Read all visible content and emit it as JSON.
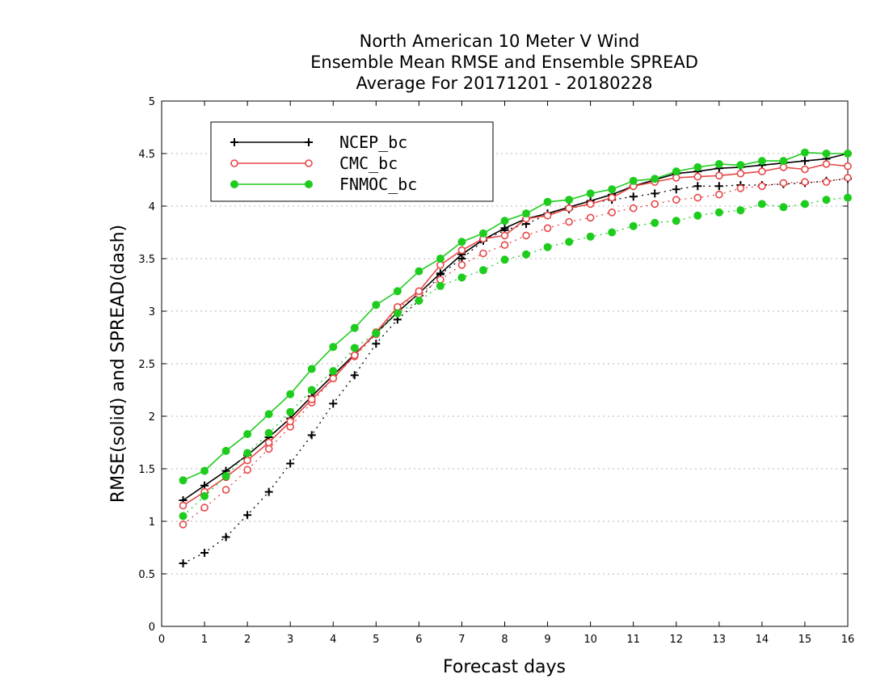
{
  "title_lines": [
    "North American 10 Meter V Wind",
    "Ensemble Mean RMSE and Ensemble SPREAD",
    "Average For 20171201 - 20180228"
  ],
  "chart_data": {
    "type": "line",
    "xlabel": "Forecast days",
    "ylabel": "RMSE(solid) and SPREAD(dash)",
    "xlim": [
      0,
      16
    ],
    "ylim": [
      0,
      5
    ],
    "x_ticks": [
      0,
      1,
      2,
      3,
      4,
      5,
      6,
      7,
      8,
      9,
      10,
      11,
      12,
      13,
      14,
      15,
      16
    ],
    "y_ticks": [
      0,
      0.5,
      1,
      1.5,
      2,
      2.5,
      3,
      3.5,
      4,
      4.5,
      5
    ],
    "y_tick_labels": [
      "0",
      "0.5",
      "1",
      "1.5",
      "2",
      "2.5",
      "3",
      "3.5",
      "4",
      "4.5",
      "5"
    ],
    "grid": "horizontal dotted",
    "legend_position": "top-left",
    "x": [
      0.5,
      1,
      1.5,
      2,
      2.5,
      3,
      3.5,
      4,
      4.5,
      5,
      5.5,
      6,
      6.5,
      7,
      7.5,
      8,
      8.5,
      9,
      9.5,
      10,
      10.5,
      11,
      11.5,
      12,
      12.5,
      13,
      13.5,
      14,
      14.5,
      15,
      15.5,
      16
    ],
    "series": [
      {
        "name": "NCEP_bc",
        "color": "#000000",
        "marker": "plus",
        "rmse": [
          1.2,
          1.34,
          1.48,
          1.63,
          1.8,
          1.98,
          2.19,
          2.39,
          2.59,
          2.79,
          2.99,
          3.17,
          3.36,
          3.54,
          3.68,
          3.79,
          3.88,
          3.93,
          3.99,
          4.05,
          4.11,
          4.19,
          4.25,
          4.31,
          4.33,
          4.36,
          4.37,
          4.39,
          4.41,
          4.43,
          4.45,
          4.5
        ],
        "spread": [
          0.6,
          0.7,
          0.85,
          1.06,
          1.28,
          1.55,
          1.82,
          2.12,
          2.39,
          2.69,
          2.92,
          3.1,
          3.35,
          3.5,
          3.67,
          3.77,
          3.83,
          3.92,
          3.97,
          4.03,
          4.06,
          4.09,
          4.12,
          4.16,
          4.19,
          4.19,
          4.2,
          4.2,
          4.21,
          4.22,
          4.24,
          4.26
        ]
      },
      {
        "name": "CMC_bc",
        "color": "#e64646",
        "marker": "open-circle",
        "rmse": [
          1.15,
          1.28,
          1.42,
          1.58,
          1.75,
          1.95,
          2.16,
          2.36,
          2.58,
          2.8,
          3.04,
          3.19,
          3.44,
          3.58,
          3.69,
          3.72,
          3.88,
          3.91,
          3.98,
          4.02,
          4.08,
          4.19,
          4.23,
          4.27,
          4.28,
          4.29,
          4.31,
          4.33,
          4.37,
          4.35,
          4.4,
          4.38
        ],
        "spread": [
          0.97,
          1.13,
          1.3,
          1.49,
          1.69,
          1.9,
          2.13,
          2.36,
          2.57,
          2.78,
          3.03,
          3.16,
          3.3,
          3.44,
          3.55,
          3.63,
          3.72,
          3.79,
          3.85,
          3.89,
          3.94,
          3.98,
          4.02,
          4.06,
          4.08,
          4.11,
          4.17,
          4.19,
          4.22,
          4.23,
          4.23,
          4.27
        ]
      },
      {
        "name": "FNMOC_bc",
        "color": "#1ecc1e",
        "marker": "filled-circle",
        "rmse": [
          1.39,
          1.48,
          1.67,
          1.83,
          2.02,
          2.21,
          2.45,
          2.66,
          2.84,
          3.06,
          3.19,
          3.38,
          3.5,
          3.66,
          3.74,
          3.86,
          3.93,
          4.04,
          4.06,
          4.12,
          4.16,
          4.24,
          4.26,
          4.33,
          4.37,
          4.4,
          4.39,
          4.43,
          4.43,
          4.51,
          4.5,
          4.5
        ],
        "spread": [
          1.05,
          1.24,
          1.43,
          1.65,
          1.84,
          2.04,
          2.25,
          2.43,
          2.65,
          2.79,
          2.98,
          3.1,
          3.24,
          3.32,
          3.39,
          3.49,
          3.54,
          3.61,
          3.66,
          3.71,
          3.75,
          3.81,
          3.84,
          3.86,
          3.91,
          3.94,
          3.96,
          4.02,
          3.99,
          4.02,
          4.06,
          4.08
        ]
      }
    ]
  }
}
